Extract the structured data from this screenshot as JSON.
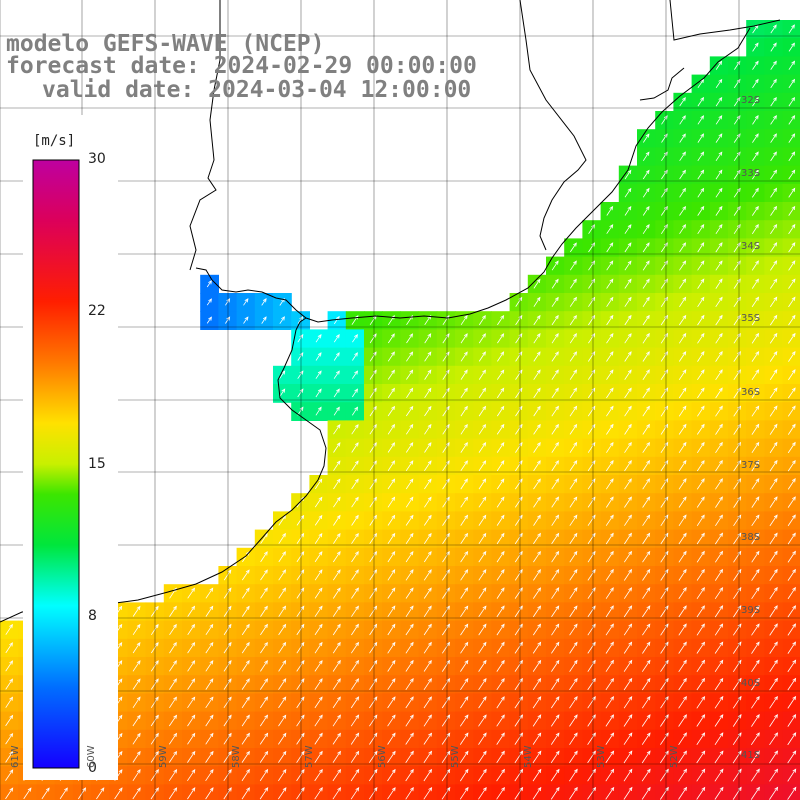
{
  "title": {
    "line1": "modelo GEFS-WAVE (NCEP)",
    "line2": "forecast date: 2024-02-29 00:00:00",
    "line3": "valid date: 2024-03-04 12:00:00"
  },
  "colorbar": {
    "unit": "[m/s]",
    "ticks": [
      "30",
      "22",
      "15",
      "8",
      "0"
    ],
    "min": 0,
    "max": 30
  },
  "lat_labels": [
    "32S",
    "33S",
    "34S",
    "35S",
    "36S",
    "37S",
    "38S",
    "39S",
    "40S",
    "41S"
  ],
  "lon_labels": [
    "61W",
    "60W",
    "59W",
    "58W",
    "57W",
    "56W",
    "55W",
    "54W",
    "53W",
    "52W"
  ],
  "colors": {
    "land": "#ffffff",
    "coast": "#000000",
    "grid": "#000000",
    "arrows": "#ffffff",
    "title_text": "#808080"
  }
}
